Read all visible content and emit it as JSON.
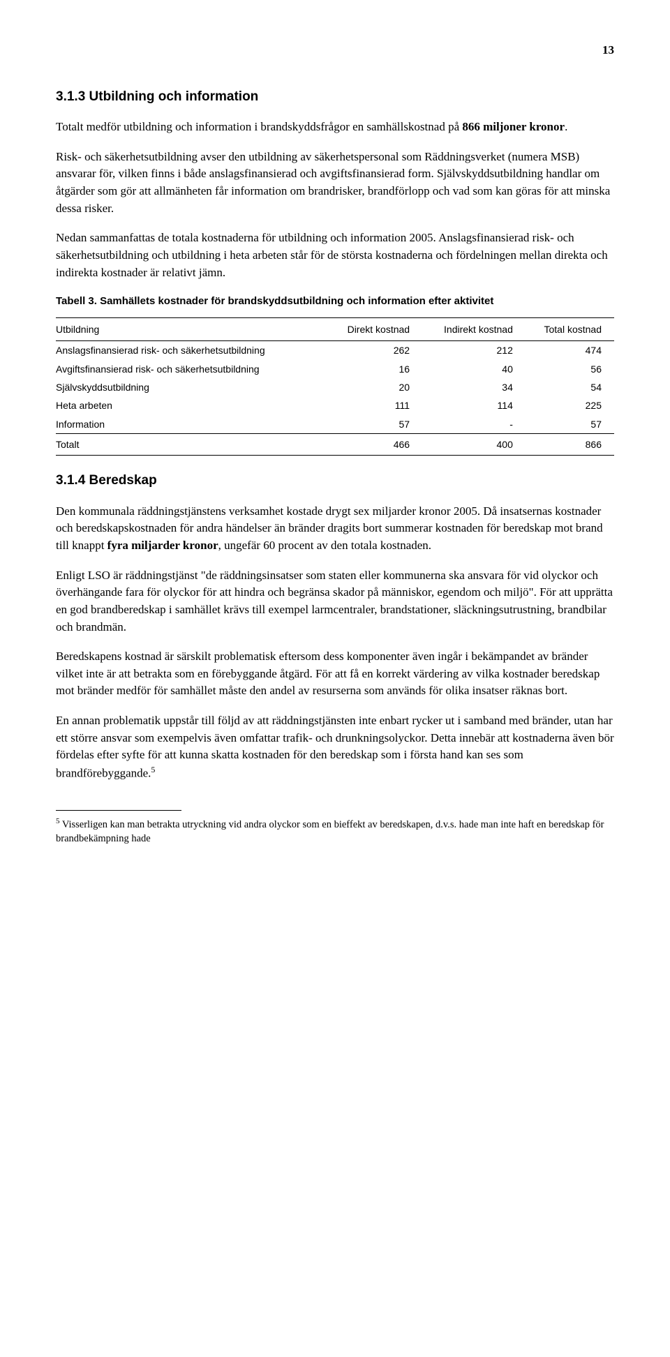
{
  "page_number": "13",
  "section1": {
    "heading": "3.1.3  Utbildning och information",
    "p1_a": "Totalt medför utbildning och information i brandskyddsfrågor en samhällskostnad på ",
    "p1_b": "866 miljoner kronor",
    "p1_c": ".",
    "p2": "Risk- och säkerhetsutbildning avser den utbildning av säkerhetspersonal som Räddningsverket (numera MSB) ansvarar för, vilken finns i både anslagsfinansierad och avgiftsfinansierad form. Självskyddsutbildning handlar om åtgärder som gör att allmänheten får information om brandrisker, brandförlopp och vad som kan göras för att minska dessa risker.",
    "p3": "Nedan sammanfattas de totala kostnaderna för utbildning och information 2005. Anslagsfinansierad risk- och säkerhetsutbildning och utbildning i heta arbeten står för de största kostnaderna och fördelningen mellan direkta och indirekta kostnader är relativt jämn."
  },
  "table": {
    "caption": "Tabell 3. Samhällets kostnader för brandskyddsutbildning och information efter aktivitet",
    "columns": [
      "Utbildning",
      "Direkt kostnad",
      "Indirekt kostnad",
      "Total kostnad"
    ],
    "rows": [
      [
        "Anslagsfinansierad risk- och säkerhetsutbildning",
        "262",
        "212",
        "474"
      ],
      [
        "Avgiftsfinansierad risk- och säkerhetsutbildning",
        "16",
        "40",
        "56"
      ],
      [
        "Självskyddsutbildning",
        "20",
        "34",
        "54"
      ],
      [
        "Heta arbeten",
        "111",
        "114",
        "225"
      ],
      [
        "Information",
        "57",
        "-",
        "57"
      ]
    ],
    "total_row": [
      "Totalt",
      "466",
      "400",
      "866"
    ]
  },
  "section2": {
    "heading": "3.1.4  Beredskap",
    "p1_a": "Den kommunala räddningstjänstens verksamhet kostade drygt sex miljarder kronor 2005. Då insatsernas kostnader och beredskapskostnaden för andra händelser än bränder dragits bort summerar kostnaden för beredskap mot brand till knappt ",
    "p1_b": "fyra miljarder kronor",
    "p1_c": ", ungefär 60 procent av den totala kostnaden.",
    "p2": "Enligt LSO är räddningstjänst \"de räddningsinsatser som staten eller kommunerna ska ansvara för vid olyckor och överhängande fara för olyckor för att hindra och begränsa skador på människor, egendom och miljö\". För att upprätta en god brandberedskap i samhället krävs till exempel larmcentraler, brandstationer, släckningsutrustning, brandbilar och brandmän.",
    "p3": "Beredskapens kostnad är särskilt problematisk eftersom dess komponenter även ingår i bekämpandet av bränder vilket inte är att betrakta som en förebyggande åtgärd. För att få en korrekt värdering av vilka kostnader beredskap mot bränder medför för samhället måste den andel av resurserna som används för olika insatser räknas bort.",
    "p4_a": "En annan problematik uppstår till följd av att räddningstjänsten inte enbart rycker ut i samband med bränder, utan har ett större ansvar som exempelvis även omfattar trafik- och drunkningsolyckor. Detta innebär att kostnaderna även bör fördelas efter syfte för att kunna skatta kostnaden för den beredskap som i första hand kan ses som brandförebyggande.",
    "p4_sup": "5"
  },
  "footnote": {
    "num": "5",
    "text": " Visserligen kan man betrakta utryckning vid andra olyckor som en bieffekt av beredskapen, d.v.s. hade man inte haft en beredskap för brandbekämpning hade"
  }
}
